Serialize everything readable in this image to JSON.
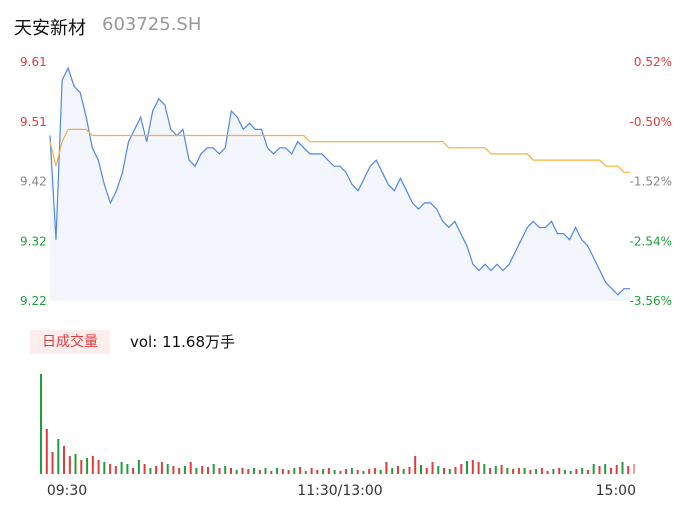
{
  "header": {
    "name": "天安新材",
    "code": "603725.SH"
  },
  "volume": {
    "tag": "日成交量",
    "label": "vol: 11.68万手"
  },
  "colors": {
    "price": "#4f86e8",
    "avg": "#f5b03c",
    "up": "#e23b3b",
    "down": "#1f9f3a",
    "neutral": "#888888"
  },
  "chart_data": [
    {
      "type": "line",
      "title": "",
      "ylim": [
        9.22,
        9.61
      ],
      "y_ticks_left": [
        "9.61",
        "9.51",
        "9.42",
        "9.32",
        "9.22"
      ],
      "y_ticks_right": [
        "0.52%",
        "-0.50%",
        "-1.52%",
        "-2.54%",
        "-3.56%"
      ],
      "x_ticks": [
        "09:30",
        "11:30/13:00",
        "15:00"
      ],
      "series": [
        {
          "values": [
            9.49,
            9.32,
            9.58,
            9.6,
            9.57,
            9.56,
            9.52,
            9.47,
            9.45,
            9.41,
            9.38,
            9.4,
            9.43,
            9.48,
            9.5,
            9.52,
            9.48,
            9.53,
            9.55,
            9.54,
            9.5,
            9.49,
            9.5,
            9.45,
            9.44,
            9.46,
            9.47,
            9.47,
            9.46,
            9.47,
            9.53,
            9.52,
            9.5,
            9.51,
            9.5,
            9.5,
            9.47,
            9.46,
            9.47,
            9.47,
            9.46,
            9.48,
            9.47,
            9.46,
            9.46,
            9.46,
            9.45,
            9.44,
            9.44,
            9.43,
            9.41,
            9.4,
            9.42,
            9.44,
            9.45,
            9.43,
            9.41,
            9.4,
            9.42,
            9.4,
            9.38,
            9.37,
            9.38,
            9.38,
            9.37,
            9.35,
            9.34,
            9.35,
            9.33,
            9.31,
            9.28,
            9.27,
            9.28,
            9.27,
            9.28,
            9.27,
            9.28,
            9.3,
            9.32,
            9.34,
            9.35,
            9.34,
            9.34,
            9.35,
            9.33,
            9.33,
            9.32,
            9.34,
            9.32,
            9.31,
            9.29,
            9.27,
            9.25,
            9.24,
            9.23,
            9.24,
            9.24
          ]
        },
        {
          "values": [
            9.48,
            9.44,
            9.48,
            9.5,
            9.5,
            9.5,
            9.5,
            9.49,
            9.49,
            9.49,
            9.49,
            9.49,
            9.49,
            9.49,
            9.49,
            9.49,
            9.49,
            9.49,
            9.49,
            9.49,
            9.49,
            9.49,
            9.49,
            9.49,
            9.49,
            9.49,
            9.49,
            9.49,
            9.49,
            9.49,
            9.49,
            9.49,
            9.49,
            9.49,
            9.49,
            9.49,
            9.49,
            9.49,
            9.49,
            9.49,
            9.49,
            9.49,
            9.49,
            9.48,
            9.48,
            9.48,
            9.48,
            9.48,
            9.48,
            9.48,
            9.48,
            9.48,
            9.48,
            9.48,
            9.48,
            9.48,
            9.48,
            9.48,
            9.48,
            9.48,
            9.48,
            9.48,
            9.48,
            9.48,
            9.48,
            9.48,
            9.47,
            9.47,
            9.47,
            9.47,
            9.47,
            9.47,
            9.47,
            9.46,
            9.46,
            9.46,
            9.46,
            9.46,
            9.46,
            9.46,
            9.45,
            9.45,
            9.45,
            9.45,
            9.45,
            9.45,
            9.45,
            9.45,
            9.45,
            9.45,
            9.45,
            9.45,
            9.44,
            9.44,
            9.44,
            9.43,
            9.43
          ]
        }
      ]
    },
    {
      "type": "bar",
      "title": "",
      "values": [
        100,
        45,
        22,
        35,
        28,
        18,
        20,
        14,
        16,
        18,
        14,
        12,
        10,
        8,
        12,
        10,
        6,
        14,
        10,
        6,
        8,
        12,
        10,
        8,
        6,
        8,
        12,
        6,
        8,
        7,
        10,
        6,
        8,
        6,
        4,
        6,
        5,
        6,
        4,
        6,
        3,
        6,
        5,
        4,
        6,
        7,
        3,
        6,
        4,
        5,
        6,
        4,
        3,
        5,
        6,
        4,
        3,
        5,
        6,
        4,
        12,
        6,
        8,
        5,
        7,
        18,
        9,
        6,
        12,
        8,
        6,
        5,
        7,
        10,
        13,
        14,
        12,
        10,
        6,
        8,
        9,
        6,
        5,
        6,
        6,
        4,
        5,
        6,
        3,
        5,
        6,
        4,
        3,
        5,
        6,
        4,
        10,
        8,
        10,
        6,
        9,
        12,
        8,
        10
      ],
      "signs": [
        -1,
        1,
        1,
        -1,
        1,
        1,
        -1,
        1,
        -1,
        1,
        1,
        -1,
        1,
        1,
        -1,
        -1,
        1,
        -1,
        1,
        -1,
        1,
        1,
        -1,
        1,
        1,
        -1,
        1,
        -1,
        1,
        1,
        -1,
        1,
        -1,
        1,
        -1,
        1,
        1,
        -1,
        1,
        -1,
        1,
        -1,
        1,
        1,
        -1,
        1,
        -1,
        1,
        1,
        -1,
        1,
        -1,
        1,
        1,
        -1,
        1,
        -1,
        1,
        1,
        -1,
        1,
        -1,
        1,
        -1,
        1,
        1,
        -1,
        1,
        1,
        -1,
        1,
        -1,
        1,
        1,
        -1,
        1,
        1,
        -1,
        1,
        -1,
        1,
        -1,
        1,
        1,
        -1,
        1,
        -1,
        1,
        1,
        -1,
        1,
        -1,
        -1,
        1,
        -1,
        1,
        -1,
        1,
        -1,
        1,
        1,
        -1,
        1,
        0
      ]
    }
  ]
}
